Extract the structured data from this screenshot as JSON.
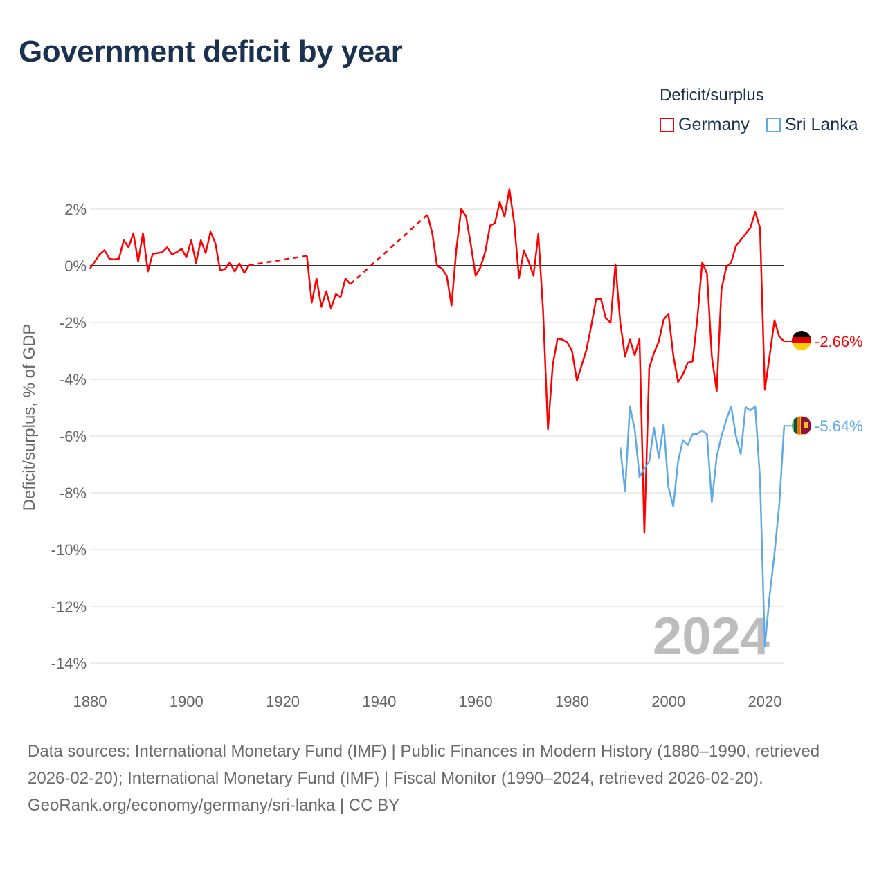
{
  "title": "Government deficit by year",
  "legend": {
    "title": "Deficit/surplus",
    "items": [
      {
        "label": "Germany",
        "color": "#ff0000"
      },
      {
        "label": "Sri Lanka",
        "color": "#5ea9e8"
      }
    ]
  },
  "chart_data": {
    "type": "line",
    "title": "Government deficit by year",
    "xlabel": "",
    "ylabel": "Deficit/surplus, % of GDP",
    "xlim": [
      1880,
      2024
    ],
    "ylim": [
      -14,
      2.8
    ],
    "x_ticks": [
      1880,
      1900,
      1920,
      1940,
      1960,
      1980,
      2000,
      2020
    ],
    "y_ticks": [
      2,
      0,
      -2,
      -4,
      -6,
      -8,
      -10,
      -12,
      -14
    ],
    "y_tick_labels": [
      "2%",
      "0%",
      "-2%",
      "-4%",
      "-6%",
      "-8%",
      "-10%",
      "-12%",
      "-14%"
    ],
    "x_tick_labels": [
      "1880",
      "1900",
      "1920",
      "1940",
      "1960",
      "1980",
      "2000",
      "2020"
    ],
    "current_year_label": "2024",
    "grid": true,
    "legend_position": "top-right",
    "series": [
      {
        "name": "Germany",
        "color": "#ff0000",
        "end_label": "-2.66%",
        "flag": "germany",
        "points": [
          [
            1880,
            -0.1
          ],
          [
            1881,
            0.15
          ],
          [
            1882,
            0.4
          ],
          [
            1883,
            0.55
          ],
          [
            1884,
            0.25
          ],
          [
            1885,
            0.22
          ],
          [
            1886,
            0.25
          ],
          [
            1887,
            0.9
          ],
          [
            1888,
            0.65
          ],
          [
            1889,
            1.15
          ],
          [
            1890,
            0.15
          ],
          [
            1891,
            1.15
          ],
          [
            1892,
            -0.2
          ],
          [
            1893,
            0.42
          ],
          [
            1894,
            0.45
          ],
          [
            1895,
            0.48
          ],
          [
            1896,
            0.65
          ],
          [
            1897,
            0.4
          ],
          [
            1898,
            0.48
          ],
          [
            1899,
            0.6
          ],
          [
            1900,
            0.3
          ],
          [
            1901,
            0.9
          ],
          [
            1902,
            0.1
          ],
          [
            1903,
            0.9
          ],
          [
            1904,
            0.45
          ],
          [
            1905,
            1.2
          ],
          [
            1906,
            0.8
          ],
          [
            1907,
            -0.15
          ],
          [
            1908,
            -0.12
          ],
          [
            1909,
            0.12
          ],
          [
            1910,
            -0.2
          ],
          [
            1911,
            0.08
          ],
          [
            1912,
            -0.25
          ],
          [
            1913,
            0.02
          ],
          [
            1925,
            0.35
          ],
          [
            1926,
            -1.3
          ],
          [
            1927,
            -0.45
          ],
          [
            1928,
            -1.45
          ],
          [
            1929,
            -0.9
          ],
          [
            1930,
            -1.5
          ],
          [
            1931,
            -1.0
          ],
          [
            1932,
            -1.1
          ],
          [
            1933,
            -0.45
          ],
          [
            1934,
            -0.65
          ],
          [
            1950,
            1.8
          ],
          [
            1951,
            1.15
          ],
          [
            1952,
            0.0
          ],
          [
            1953,
            -0.1
          ],
          [
            1954,
            -0.35
          ],
          [
            1955,
            -1.4
          ],
          [
            1956,
            0.58
          ],
          [
            1957,
            2.0
          ],
          [
            1958,
            1.75
          ],
          [
            1959,
            0.75
          ],
          [
            1960,
            -0.35
          ],
          [
            1961,
            -0.05
          ],
          [
            1962,
            0.5
          ],
          [
            1963,
            1.42
          ],
          [
            1964,
            1.5
          ],
          [
            1965,
            2.25
          ],
          [
            1966,
            1.73
          ],
          [
            1967,
            2.7
          ],
          [
            1968,
            1.5
          ],
          [
            1969,
            -0.43
          ],
          [
            1970,
            0.54
          ],
          [
            1971,
            0.15
          ],
          [
            1972,
            -0.35
          ],
          [
            1973,
            1.12
          ],
          [
            1974,
            -1.6
          ],
          [
            1975,
            -5.76
          ],
          [
            1976,
            -3.48
          ],
          [
            1977,
            -2.56
          ],
          [
            1978,
            -2.6
          ],
          [
            1979,
            -2.7
          ],
          [
            1980,
            -3.0
          ],
          [
            1981,
            -4.05
          ],
          [
            1982,
            -3.5
          ],
          [
            1983,
            -2.95
          ],
          [
            1984,
            -2.1
          ],
          [
            1985,
            -1.17
          ],
          [
            1986,
            -1.17
          ],
          [
            1987,
            -1.85
          ],
          [
            1988,
            -2.0
          ],
          [
            1989,
            0.05
          ],
          [
            1990,
            -2.0
          ],
          [
            1991,
            -3.2
          ],
          [
            1992,
            -2.6
          ],
          [
            1993,
            -3.15
          ],
          [
            1994,
            -2.57
          ],
          [
            1995,
            -9.4
          ],
          [
            1996,
            -3.6
          ],
          [
            1997,
            -3.07
          ],
          [
            1998,
            -2.66
          ],
          [
            1999,
            -1.9
          ],
          [
            2000,
            -1.69
          ],
          [
            2001,
            -3.15
          ],
          [
            2002,
            -4.1
          ],
          [
            2003,
            -3.83
          ],
          [
            2004,
            -3.42
          ],
          [
            2005,
            -3.37
          ],
          [
            2006,
            -1.86
          ],
          [
            2007,
            0.12
          ],
          [
            2008,
            -0.27
          ],
          [
            2009,
            -3.2
          ],
          [
            2010,
            -4.42
          ],
          [
            2011,
            -0.83
          ],
          [
            2012,
            -0.05
          ],
          [
            2013,
            0.12
          ],
          [
            2014,
            0.7
          ],
          [
            2015,
            0.91
          ],
          [
            2016,
            1.12
          ],
          [
            2017,
            1.34
          ],
          [
            2018,
            1.9
          ],
          [
            2019,
            1.34
          ],
          [
            2020,
            -4.37
          ],
          [
            2021,
            -3.15
          ],
          [
            2022,
            -1.92
          ],
          [
            2023,
            -2.5
          ],
          [
            2024,
            -2.66
          ]
        ]
      },
      {
        "name": "Sri Lanka",
        "color": "#5ea9e8",
        "end_label": "-5.64%",
        "flag": "sri-lanka",
        "points": [
          [
            1990,
            -6.4
          ],
          [
            1991,
            -7.95
          ],
          [
            1992,
            -4.95
          ],
          [
            1993,
            -5.76
          ],
          [
            1994,
            -7.44
          ],
          [
            1995,
            -7.14
          ],
          [
            1996,
            -6.9
          ],
          [
            1997,
            -5.71
          ],
          [
            1998,
            -6.77
          ],
          [
            1999,
            -5.59
          ],
          [
            2000,
            -7.79
          ],
          [
            2001,
            -8.48
          ],
          [
            2002,
            -6.9
          ],
          [
            2003,
            -6.14
          ],
          [
            2004,
            -6.32
          ],
          [
            2005,
            -5.94
          ],
          [
            2006,
            -5.92
          ],
          [
            2007,
            -5.8
          ],
          [
            2008,
            -5.94
          ],
          [
            2009,
            -8.32
          ],
          [
            2010,
            -6.73
          ],
          [
            2011,
            -6.0
          ],
          [
            2012,
            -5.43
          ],
          [
            2013,
            -4.95
          ],
          [
            2014,
            -6.0
          ],
          [
            2015,
            -6.63
          ],
          [
            2016,
            -4.98
          ],
          [
            2017,
            -5.1
          ],
          [
            2018,
            -4.95
          ],
          [
            2019,
            -7.5
          ],
          [
            2020,
            -13.4
          ],
          [
            2021,
            -11.6
          ],
          [
            2022,
            -10.15
          ],
          [
            2023,
            -8.4
          ],
          [
            2024,
            -5.64
          ]
        ]
      }
    ]
  },
  "footer": {
    "sources": "Data sources: International Monetary Fund (IMF) | Public Finances in Modern History (1880–1990, retrieved 2026-02-20); International Monetary Fund (IMF) | Fiscal Monitor (1990–2024, retrieved 2026-02-20).",
    "attribution": "GeoRank.org/economy/germany/sri-lanka | CC BY"
  }
}
